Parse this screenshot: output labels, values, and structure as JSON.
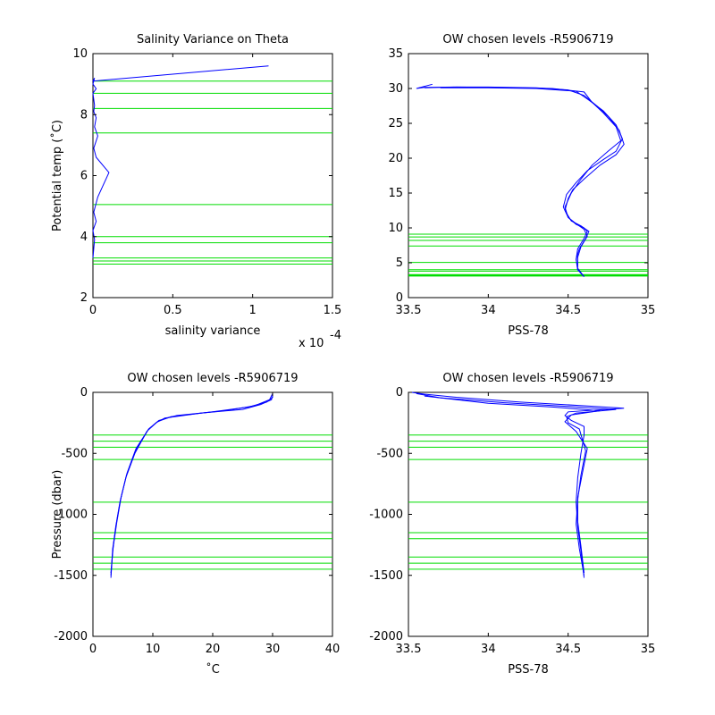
{
  "chart_data": [
    {
      "type": "line",
      "title": "Salinity Variance on Theta",
      "xlabel": "salinity variance",
      "ylabel": "Potential temp (˚C)",
      "x_exponent_label": "x 10",
      "x_exponent_power": "-4",
      "xlim": [
        0,
        1.5
      ],
      "ylim": [
        2,
        10
      ],
      "xticks": [
        0,
        0.5,
        1,
        1.5
      ],
      "xtick_labels": [
        "0",
        "0.5",
        "1",
        "1.5"
      ],
      "yticks": [
        2,
        4,
        6,
        8,
        10
      ],
      "ytick_labels": [
        "2",
        "4",
        "6",
        "8",
        "10"
      ],
      "line_color": "#0000ff",
      "level_color": "#00dd00",
      "levels": [
        9.1,
        8.7,
        8.2,
        7.4,
        5.05,
        4.0,
        3.8,
        3.3,
        3.2,
        3.1
      ],
      "series": [
        {
          "x": [
            0.0,
            0.005,
            0.01,
            0.0,
            0.02,
            0.005,
            0.03,
            0.1,
            0.02,
            0.005,
            0.03,
            0.01,
            0.02,
            0.005,
            0.01,
            0.005,
            0.0,
            0.02,
            0.0,
            0.005,
            0.01,
            0.0,
            1.1
          ],
          "y": [
            3.3,
            3.6,
            3.9,
            4.2,
            4.5,
            4.8,
            5.3,
            6.1,
            6.6,
            6.9,
            7.3,
            7.6,
            7.9,
            8.1,
            8.3,
            8.5,
            8.7,
            8.85,
            9.0,
            9.1,
            9.2,
            9.1,
            9.6
          ]
        }
      ]
    },
    {
      "type": "line",
      "title": "OW chosen levels -R5906719",
      "xlabel": "PSS-78",
      "ylabel": "",
      "xlim": [
        33.5,
        35
      ],
      "ylim": [
        0,
        35
      ],
      "xticks": [
        33.5,
        34,
        34.5,
        35
      ],
      "xtick_labels": [
        "33.5",
        "34",
        "34.5",
        "35"
      ],
      "yticks": [
        0,
        5,
        10,
        15,
        20,
        25,
        30,
        35
      ],
      "ytick_labels": [
        "0",
        "5",
        "10",
        "15",
        "20",
        "25",
        "30",
        "35"
      ],
      "line_color": "#0000ff",
      "level_color": "#00dd00",
      "levels": [
        9.1,
        8.7,
        8.2,
        7.4,
        5.05,
        4.0,
        3.8,
        3.3,
        3.2,
        3.1
      ],
      "series": [
        {
          "x": [
            34.6,
            34.56,
            34.55,
            34.56,
            34.6,
            34.62,
            34.6,
            34.55,
            34.5,
            34.48,
            34.5,
            34.52,
            34.58,
            34.65,
            34.75,
            34.83,
            34.8,
            34.72,
            34.65,
            34.6,
            34.4,
            34.2,
            34.0,
            33.8,
            33.6,
            33.55,
            33.65
          ],
          "y": [
            3.0,
            4.0,
            5.5,
            7.0,
            8.5,
            9.5,
            10.0,
            10.5,
            11.5,
            13.0,
            14.0,
            15.0,
            17.0,
            19.0,
            21.0,
            22.5,
            24.5,
            26.5,
            28.0,
            29.5,
            30.0,
            30.1,
            30.15,
            30.2,
            30.15,
            30.0,
            30.6
          ]
        },
        {
          "x": [
            34.6,
            34.56,
            34.55,
            34.57,
            34.61,
            34.63,
            34.58,
            34.52,
            34.48,
            34.5,
            34.53,
            34.6,
            34.7,
            34.8,
            34.85,
            34.82,
            34.75,
            34.68,
            34.6,
            34.5,
            34.3,
            34.0,
            33.8,
            33.6
          ],
          "y": [
            3.0,
            4.0,
            5.5,
            7.0,
            8.5,
            9.5,
            10.3,
            11.0,
            12.5,
            14.2,
            15.5,
            17.0,
            19.0,
            20.5,
            22.0,
            24.0,
            26.0,
            27.5,
            29.0,
            29.8,
            30.1,
            30.2,
            30.2,
            30.1
          ]
        },
        {
          "x": [
            34.6,
            34.56,
            34.56,
            34.58,
            34.62,
            34.6,
            34.55,
            34.5,
            34.47,
            34.49,
            34.55,
            34.62,
            34.72,
            34.8,
            34.84,
            34.8,
            34.72,
            34.62,
            34.55,
            34.3,
            34.0,
            33.7
          ],
          "y": [
            3.0,
            4.2,
            5.8,
            7.3,
            8.8,
            9.8,
            10.6,
            11.5,
            13.0,
            14.8,
            16.5,
            18.2,
            19.8,
            21.0,
            22.8,
            24.8,
            26.8,
            28.5,
            29.6,
            30.0,
            30.1,
            30.1
          ]
        }
      ]
    },
    {
      "type": "line",
      "title": "OW chosen levels -R5906719",
      "xlabel": "˚C",
      "ylabel": "Pressure (dbar)",
      "xlim": [
        0,
        40
      ],
      "ylim": [
        -2000,
        0
      ],
      "xticks": [
        0,
        10,
        20,
        30,
        40
      ],
      "xtick_labels": [
        "0",
        "10",
        "20",
        "30",
        "40"
      ],
      "yticks": [
        -2000,
        -1500,
        -1000,
        -500,
        0
      ],
      "ytick_labels": [
        "-2000",
        "-1500",
        "-1000",
        "-500",
        "0"
      ],
      "line_color": "#0000ff",
      "level_color": "#00dd00",
      "levels": [
        -350,
        -400,
        -450,
        -550,
        -900,
        -1150,
        -1200,
        -1350,
        -1400,
        -1450
      ],
      "series": [
        {
          "x": [
            3.0,
            3.3,
            3.8,
            4.5,
            5.5,
            7.0,
            9.0,
            10.5,
            12.0,
            18.0,
            25.0,
            28.0,
            29.8,
            30.0,
            30.0
          ],
          "y": [
            -1520,
            -1300,
            -1100,
            -900,
            -700,
            -500,
            -320,
            -250,
            -210,
            -170,
            -140,
            -100,
            -60,
            -30,
            0
          ]
        },
        {
          "x": [
            3.0,
            3.3,
            3.9,
            4.6,
            5.6,
            7.1,
            9.2,
            10.8,
            13.0,
            20.0,
            26.0,
            29.0,
            30.0,
            30.0
          ],
          "y": [
            -1500,
            -1280,
            -1080,
            -880,
            -680,
            -480,
            -310,
            -240,
            -200,
            -160,
            -120,
            -80,
            -40,
            0
          ]
        },
        {
          "x": [
            3.0,
            3.4,
            4.0,
            4.7,
            5.7,
            7.2,
            9.3,
            11.0,
            14.0,
            22.0,
            27.0,
            29.5,
            30.0
          ],
          "y": [
            -1480,
            -1260,
            -1060,
            -860,
            -660,
            -460,
            -300,
            -230,
            -190,
            -150,
            -110,
            -60,
            -10
          ]
        }
      ]
    },
    {
      "type": "line",
      "title": "OW chosen levels -R5906719",
      "xlabel": "PSS-78",
      "ylabel": "",
      "xlim": [
        33.5,
        35
      ],
      "ylim": [
        -2000,
        0
      ],
      "xticks": [
        33.5,
        34,
        34.5,
        35
      ],
      "xtick_labels": [
        "33.5",
        "34",
        "34.5",
        "35"
      ],
      "yticks": [
        -2000,
        -1500,
        -1000,
        -500,
        0
      ],
      "ytick_labels": [
        "-2000",
        "-1500",
        "-1000",
        "-500",
        "0"
      ],
      "line_color": "#0000ff",
      "level_color": "#00dd00",
      "levels": [
        -350,
        -400,
        -450,
        -550,
        -900,
        -1150,
        -1200,
        -1350,
        -1400,
        -1450
      ],
      "series": [
        {
          "x": [
            34.6,
            34.58,
            34.56,
            34.55,
            34.56,
            34.58,
            34.6,
            34.6,
            34.52,
            34.48,
            34.5,
            34.85,
            34.6,
            34.2,
            33.8,
            33.6,
            33.52
          ],
          "y": [
            -1520,
            -1300,
            -1100,
            -900,
            -700,
            -500,
            -350,
            -280,
            -230,
            -190,
            -160,
            -130,
            -110,
            -80,
            -40,
            -15,
            0
          ]
        },
        {
          "x": [
            34.6,
            34.57,
            34.55,
            34.56,
            34.58,
            34.61,
            34.57,
            34.5,
            34.49,
            34.55,
            34.8,
            34.5,
            34.1,
            33.7,
            33.55
          ],
          "y": [
            -1500,
            -1280,
            -1080,
            -880,
            -680,
            -480,
            -300,
            -250,
            -200,
            -170,
            -140,
            -115,
            -85,
            -45,
            -10
          ]
        },
        {
          "x": [
            34.6,
            34.58,
            34.56,
            34.56,
            34.59,
            34.62,
            34.55,
            34.48,
            34.52,
            34.7,
            34.4,
            34.0,
            33.6
          ],
          "y": [
            -1480,
            -1260,
            -1060,
            -860,
            -660,
            -460,
            -320,
            -240,
            -185,
            -150,
            -120,
            -90,
            -30
          ]
        }
      ]
    }
  ]
}
